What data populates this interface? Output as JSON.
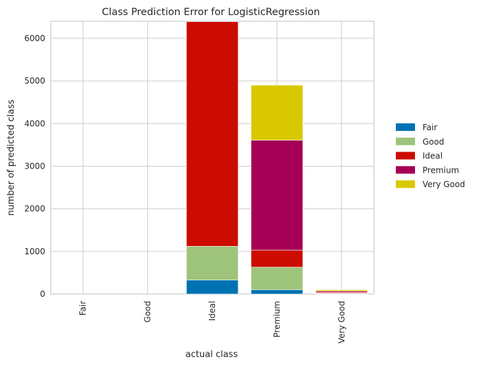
{
  "chart_data": {
    "type": "bar",
    "stacked": true,
    "title": "Class Prediction Error for LogisticRegression",
    "xlabel": "actual class",
    "ylabel": "number of predicted class",
    "categories": [
      "Fair",
      "Good",
      "Ideal",
      "Premium",
      "Very Good"
    ],
    "ylim": [
      0,
      6400
    ],
    "yticks": [
      0,
      1000,
      2000,
      3000,
      4000,
      5000,
      6000
    ],
    "grid": true,
    "legend_position": "right",
    "series": [
      {
        "name": "Fair",
        "color": "#0072b2",
        "values": [
          0,
          0,
          330,
          100,
          10
        ]
      },
      {
        "name": "Good",
        "color": "#9ec37a",
        "values": [
          0,
          0,
          790,
          530,
          10
        ]
      },
      {
        "name": "Ideal",
        "color": "#cc0c00",
        "values": [
          0,
          0,
          5270,
          400,
          20
        ]
      },
      {
        "name": "Premium",
        "color": "#a50055",
        "values": [
          0,
          0,
          0,
          2580,
          30
        ]
      },
      {
        "name": "Very Good",
        "color": "#d9c800",
        "values": [
          0,
          0,
          0,
          1290,
          30
        ]
      }
    ]
  }
}
